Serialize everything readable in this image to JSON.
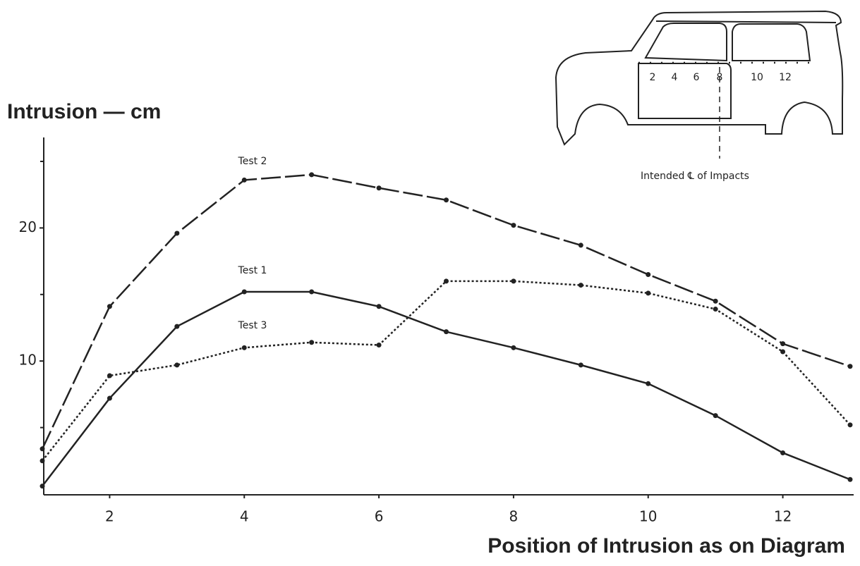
{
  "chart_data": {
    "type": "line",
    "y_label": "Intrusion — cm",
    "x_label": "Position of Intrusion as on Diagram",
    "x": [
      1,
      2,
      3,
      4,
      5,
      6,
      7,
      8,
      9,
      10,
      11,
      12,
      13
    ],
    "xlim": [
      1,
      13
    ],
    "xticks": [
      2,
      4,
      6,
      8,
      10,
      12
    ],
    "ylim": [
      0,
      26.8
    ],
    "yticks": [
      10,
      20
    ],
    "yminorticks": [
      5,
      15,
      25
    ],
    "series": [
      {
        "name": "Test 2",
        "color": "#222222",
        "style": "dashed",
        "values": [
          3.4,
          14.1,
          19.6,
          23.6,
          24.0,
          23.0,
          22.1,
          20.2,
          18.7,
          16.5,
          14.5,
          11.3,
          9.6
        ]
      },
      {
        "name": "Test 1",
        "color": "#222222",
        "style": "solid",
        "values": [
          0.6,
          7.2,
          12.6,
          15.2,
          15.2,
          14.1,
          12.2,
          11.0,
          9.7,
          8.3,
          5.9,
          3.1,
          1.1
        ]
      },
      {
        "name": "Test 3",
        "color": "#222222",
        "style": "dotted",
        "values": [
          2.5,
          8.9,
          9.7,
          11.0,
          11.4,
          11.2,
          16.0,
          16.0,
          15.7,
          15.1,
          13.9,
          10.7,
          5.2
        ]
      }
    ]
  },
  "inset": {
    "positions": [
      "2",
      "4",
      "6",
      "8",
      "10",
      "12"
    ],
    "caption": "Intended ℄ of Impacts"
  }
}
